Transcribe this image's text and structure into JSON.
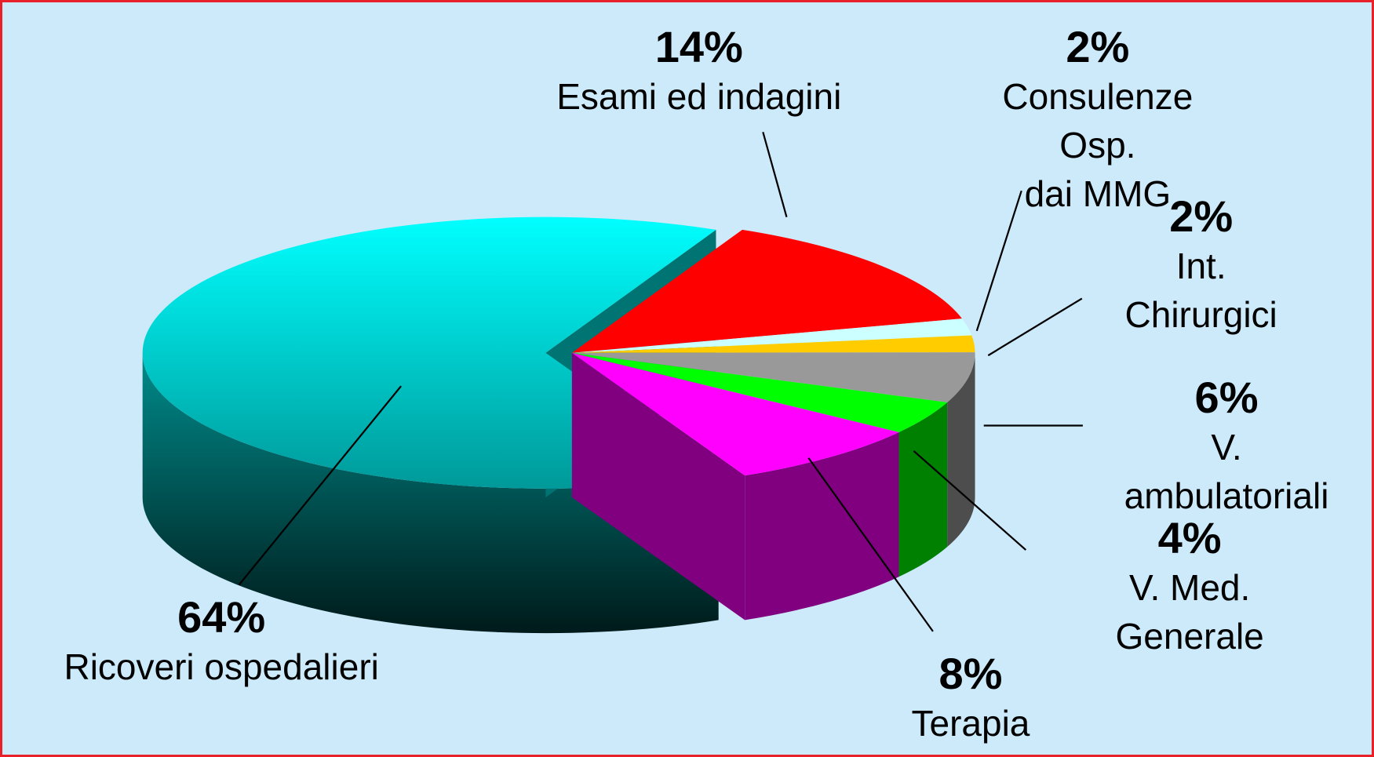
{
  "chart_data": {
    "type": "pie",
    "categories": [
      "Esami ed indagini",
      "Consulenze Osp.\ndai MMG",
      "Int. Chirurgici",
      "V. ambulatoriali",
      "V. Med. Generale",
      "Terapia",
      "Ricoveri ospedalieri"
    ],
    "values": [
      14,
      2,
      2,
      6,
      4,
      8,
      64
    ],
    "value_labels": [
      "14%",
      "2%",
      "2%",
      "6%",
      "4%",
      "8%",
      "64%"
    ],
    "colors": [
      "#ff0000",
      "#ccffff",
      "#ffcc00",
      "#999999",
      "#00ff00",
      "#ff00ff",
      "#00ffff"
    ],
    "exploded": "Ricoveri ospedalieri"
  }
}
